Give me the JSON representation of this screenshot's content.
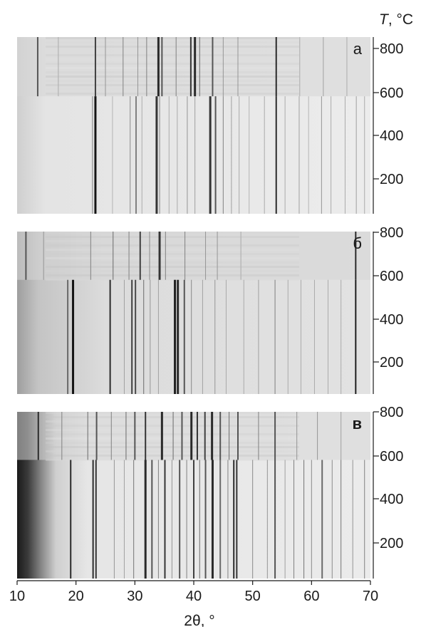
{
  "chart_data": {
    "type": "heatmap",
    "description_free": true,
    "temperature_axis": {
      "symbol": "T",
      "unit": ", °C",
      "ticks": [
        200,
        400,
        600,
        800
      ],
      "range": [
        30,
        830
      ]
    },
    "x_axis": {
      "label": "2θ, °",
      "ticks": [
        10,
        20,
        30,
        40,
        50,
        60,
        70
      ],
      "range": [
        10,
        70
      ]
    },
    "panels": [
      {
        "label": "а",
        "transition_T": 580,
        "low_T_lines": [
          {
            "x": 23.3,
            "i": 1.0,
            "w": 3
          },
          {
            "x": 22.8,
            "i": 0.5,
            "w": 1
          },
          {
            "x": 26.2,
            "i": 0.25,
            "w": 1
          },
          {
            "x": 29.2,
            "i": 0.45,
            "w": 1
          },
          {
            "x": 30.2,
            "i": 0.5,
            "w": 2
          },
          {
            "x": 31.2,
            "i": 0.3,
            "w": 1
          },
          {
            "x": 33.7,
            "i": 0.85,
            "w": 3
          },
          {
            "x": 34.2,
            "i": 0.5,
            "w": 1
          },
          {
            "x": 35.8,
            "i": 0.3,
            "w": 1
          },
          {
            "x": 37.2,
            "i": 0.3,
            "w": 1
          },
          {
            "x": 38.9,
            "i": 0.4,
            "w": 1
          },
          {
            "x": 40.2,
            "i": 0.35,
            "w": 1
          },
          {
            "x": 42.8,
            "i": 0.85,
            "w": 3
          },
          {
            "x": 43.7,
            "i": 0.7,
            "w": 2
          },
          {
            "x": 45.0,
            "i": 0.5,
            "w": 1
          },
          {
            "x": 46.4,
            "i": 0.35,
            "w": 1
          },
          {
            "x": 47.7,
            "i": 0.3,
            "w": 1
          },
          {
            "x": 49.4,
            "i": 0.25,
            "w": 1
          },
          {
            "x": 52.0,
            "i": 0.3,
            "w": 1
          },
          {
            "x": 54.0,
            "i": 0.9,
            "w": 2
          },
          {
            "x": 55.5,
            "i": 0.3,
            "w": 1
          },
          {
            "x": 57.9,
            "i": 0.35,
            "w": 1
          },
          {
            "x": 59.5,
            "i": 0.25,
            "w": 1
          },
          {
            "x": 61.7,
            "i": 0.4,
            "w": 1
          },
          {
            "x": 63.3,
            "i": 0.3,
            "w": 1
          },
          {
            "x": 65.7,
            "i": 0.3,
            "w": 1
          },
          {
            "x": 67.6,
            "i": 0.35,
            "w": 1
          },
          {
            "x": 69.0,
            "i": 0.3,
            "w": 1
          }
        ],
        "high_T_lines": [
          {
            "x": 13.5,
            "i": 0.7,
            "w": 2
          },
          {
            "x": 17.0,
            "i": 0.3,
            "w": 1
          },
          {
            "x": 23.3,
            "i": 0.8,
            "w": 2
          },
          {
            "x": 25.0,
            "i": 0.4,
            "w": 1
          },
          {
            "x": 28.0,
            "i": 0.5,
            "w": 1
          },
          {
            "x": 30.5,
            "i": 0.4,
            "w": 1
          },
          {
            "x": 32.0,
            "i": 0.5,
            "w": 1
          },
          {
            "x": 34.0,
            "i": 0.9,
            "w": 3
          },
          {
            "x": 34.6,
            "i": 0.7,
            "w": 2
          },
          {
            "x": 37.0,
            "i": 0.5,
            "w": 1
          },
          {
            "x": 39.5,
            "i": 0.85,
            "w": 2
          },
          {
            "x": 40.2,
            "i": 0.9,
            "w": 3
          },
          {
            "x": 41.0,
            "i": 0.6,
            "w": 1
          },
          {
            "x": 43.2,
            "i": 0.7,
            "w": 2
          },
          {
            "x": 45.0,
            "i": 0.4,
            "w": 1
          },
          {
            "x": 47.5,
            "i": 0.4,
            "w": 1
          },
          {
            "x": 54.0,
            "i": 0.9,
            "w": 2
          },
          {
            "x": 58.0,
            "i": 0.3,
            "w": 1
          },
          {
            "x": 62.0,
            "i": 0.35,
            "w": 1
          },
          {
            "x": 66.0,
            "i": 0.3,
            "w": 1
          }
        ]
      },
      {
        "label": "б",
        "transition_T": 580,
        "low_T_lines": [
          {
            "x": 18.6,
            "i": 0.6,
            "w": 2
          },
          {
            "x": 19.5,
            "i": 1.0,
            "w": 3
          },
          {
            "x": 25.8,
            "i": 0.9,
            "w": 2
          },
          {
            "x": 28.2,
            "i": 0.35,
            "w": 1
          },
          {
            "x": 29.5,
            "i": 0.8,
            "w": 2
          },
          {
            "x": 30.1,
            "i": 0.75,
            "w": 2
          },
          {
            "x": 31.5,
            "i": 0.6,
            "w": 1
          },
          {
            "x": 32.6,
            "i": 0.4,
            "w": 1
          },
          {
            "x": 34.0,
            "i": 0.35,
            "w": 1
          },
          {
            "x": 36.8,
            "i": 0.95,
            "w": 3
          },
          {
            "x": 37.3,
            "i": 0.9,
            "w": 3
          },
          {
            "x": 38.4,
            "i": 0.7,
            "w": 2
          },
          {
            "x": 39.6,
            "i": 0.45,
            "w": 1
          },
          {
            "x": 41.5,
            "i": 0.35,
            "w": 1
          },
          {
            "x": 43.6,
            "i": 0.4,
            "w": 1
          },
          {
            "x": 45.5,
            "i": 0.3,
            "w": 1
          },
          {
            "x": 48.5,
            "i": 0.3,
            "w": 1
          },
          {
            "x": 51.0,
            "i": 0.35,
            "w": 1
          },
          {
            "x": 53.8,
            "i": 0.5,
            "w": 1
          },
          {
            "x": 56.0,
            "i": 0.3,
            "w": 1
          },
          {
            "x": 58.2,
            "i": 0.3,
            "w": 1
          },
          {
            "x": 60.5,
            "i": 0.3,
            "w": 1
          },
          {
            "x": 62.8,
            "i": 0.3,
            "w": 1
          },
          {
            "x": 65.0,
            "i": 0.3,
            "w": 1
          },
          {
            "x": 67.5,
            "i": 0.95,
            "w": 2
          }
        ],
        "high_T_lines": [
          {
            "x": 11.5,
            "i": 0.7,
            "w": 2
          },
          {
            "x": 14.5,
            "i": 0.4,
            "w": 1
          },
          {
            "x": 22.5,
            "i": 0.5,
            "w": 1
          },
          {
            "x": 26.3,
            "i": 0.6,
            "w": 1
          },
          {
            "x": 29.0,
            "i": 0.5,
            "w": 1
          },
          {
            "x": 30.9,
            "i": 0.8,
            "w": 2
          },
          {
            "x": 32.5,
            "i": 0.45,
            "w": 1
          },
          {
            "x": 34.2,
            "i": 0.85,
            "w": 3
          },
          {
            "x": 35.2,
            "i": 0.5,
            "w": 1
          },
          {
            "x": 38.5,
            "i": 0.5,
            "w": 1
          },
          {
            "x": 42.0,
            "i": 0.4,
            "w": 1
          },
          {
            "x": 44.0,
            "i": 0.4,
            "w": 1
          },
          {
            "x": 48.0,
            "i": 0.3,
            "w": 1
          },
          {
            "x": 67.5,
            "i": 0.9,
            "w": 2
          }
        ]
      },
      {
        "label": "в",
        "transition_T": 580,
        "low_T_lines": [
          {
            "x": 19.1,
            "i": 0.9,
            "w": 2
          },
          {
            "x": 22.9,
            "i": 0.9,
            "w": 2
          },
          {
            "x": 23.4,
            "i": 0.85,
            "w": 2
          },
          {
            "x": 26.5,
            "i": 0.4,
            "w": 1
          },
          {
            "x": 28.2,
            "i": 0.35,
            "w": 1
          },
          {
            "x": 29.8,
            "i": 0.55,
            "w": 1
          },
          {
            "x": 31.8,
            "i": 0.9,
            "w": 3
          },
          {
            "x": 32.9,
            "i": 0.7,
            "w": 2
          },
          {
            "x": 34.0,
            "i": 0.5,
            "w": 1
          },
          {
            "x": 35.1,
            "i": 0.85,
            "w": 2
          },
          {
            "x": 36.3,
            "i": 0.4,
            "w": 1
          },
          {
            "x": 37.6,
            "i": 0.7,
            "w": 2
          },
          {
            "x": 38.8,
            "i": 0.5,
            "w": 1
          },
          {
            "x": 40.0,
            "i": 0.8,
            "w": 2
          },
          {
            "x": 41.0,
            "i": 0.6,
            "w": 1
          },
          {
            "x": 42.0,
            "i": 0.7,
            "w": 2
          },
          {
            "x": 43.2,
            "i": 0.9,
            "w": 3
          },
          {
            "x": 44.5,
            "i": 0.6,
            "w": 2
          },
          {
            "x": 45.8,
            "i": 0.5,
            "w": 1
          },
          {
            "x": 46.8,
            "i": 0.9,
            "w": 2
          },
          {
            "x": 47.3,
            "i": 0.85,
            "w": 2
          },
          {
            "x": 50.0,
            "i": 0.45,
            "w": 1
          },
          {
            "x": 52.5,
            "i": 0.4,
            "w": 1
          },
          {
            "x": 53.8,
            "i": 0.7,
            "w": 2
          },
          {
            "x": 55.5,
            "i": 0.35,
            "w": 1
          },
          {
            "x": 57.0,
            "i": 0.5,
            "w": 1
          },
          {
            "x": 58.7,
            "i": 0.55,
            "w": 1
          },
          {
            "x": 60.0,
            "i": 0.45,
            "w": 1
          },
          {
            "x": 61.8,
            "i": 0.6,
            "w": 2
          },
          {
            "x": 63.5,
            "i": 0.45,
            "w": 1
          },
          {
            "x": 65.0,
            "i": 0.55,
            "w": 1
          },
          {
            "x": 67.0,
            "i": 0.4,
            "w": 1
          },
          {
            "x": 69.0,
            "i": 0.5,
            "w": 1
          }
        ],
        "high_T_lines": [
          {
            "x": 13.6,
            "i": 0.9,
            "w": 2
          },
          {
            "x": 17.6,
            "i": 0.5,
            "w": 1
          },
          {
            "x": 22.0,
            "i": 0.6,
            "w": 1
          },
          {
            "x": 23.5,
            "i": 0.7,
            "w": 2
          },
          {
            "x": 26.0,
            "i": 0.5,
            "w": 1
          },
          {
            "x": 28.5,
            "i": 0.6,
            "w": 1
          },
          {
            "x": 30.0,
            "i": 0.7,
            "w": 2
          },
          {
            "x": 31.8,
            "i": 0.85,
            "w": 2
          },
          {
            "x": 34.6,
            "i": 0.9,
            "w": 3
          },
          {
            "x": 36.5,
            "i": 0.6,
            "w": 1
          },
          {
            "x": 38.0,
            "i": 0.7,
            "w": 2
          },
          {
            "x": 39.6,
            "i": 0.9,
            "w": 3
          },
          {
            "x": 40.6,
            "i": 0.85,
            "w": 2
          },
          {
            "x": 41.9,
            "i": 0.8,
            "w": 2
          },
          {
            "x": 43.1,
            "i": 0.9,
            "w": 3
          },
          {
            "x": 44.5,
            "i": 0.7,
            "w": 2
          },
          {
            "x": 46.0,
            "i": 0.6,
            "w": 1
          },
          {
            "x": 47.5,
            "i": 0.7,
            "w": 2
          },
          {
            "x": 51.0,
            "i": 0.5,
            "w": 1
          },
          {
            "x": 53.8,
            "i": 0.7,
            "w": 2
          },
          {
            "x": 57.5,
            "i": 0.4,
            "w": 1
          },
          {
            "x": 61.0,
            "i": 0.4,
            "w": 1
          },
          {
            "x": 65.0,
            "i": 0.35,
            "w": 1
          }
        ]
      }
    ]
  }
}
